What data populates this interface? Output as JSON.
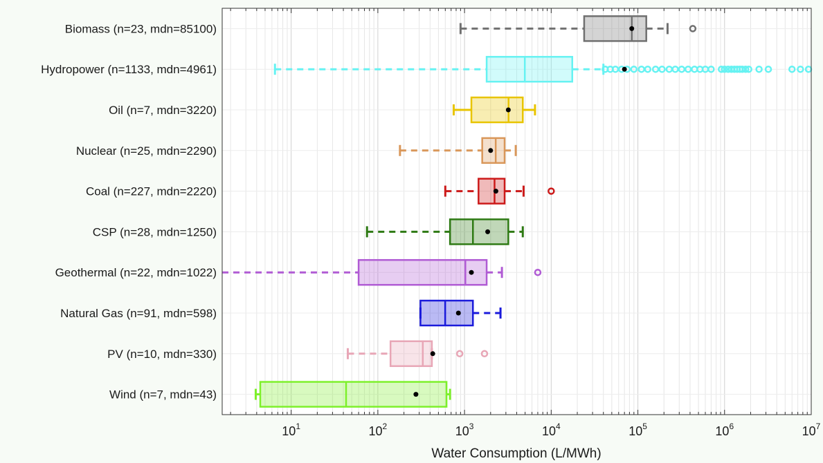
{
  "chart_data": {
    "type": "box",
    "orientation": "horizontal",
    "xlabel": "Water Consumption (L/MWh)",
    "xscale": "log",
    "xlim": [
      1.6,
      10000000
    ],
    "grid": true,
    "xticks": [
      {
        "base": "10",
        "exp": "1"
      },
      {
        "base": "10",
        "exp": "2"
      },
      {
        "base": "10",
        "exp": "3"
      },
      {
        "base": "10",
        "exp": "4"
      },
      {
        "base": "10",
        "exp": "5"
      },
      {
        "base": "10",
        "exp": "6"
      },
      {
        "base": "10",
        "exp": "7"
      }
    ],
    "categories": [
      {
        "label": "Biomass (n=23, mdn=85100)",
        "color": "#707070",
        "dashed": true,
        "whisker_low": 900,
        "q1": 24000,
        "median": 85100,
        "q3": 125000,
        "whisker_high": 220000,
        "mean": 85000,
        "outliers": [
          430000
        ]
      },
      {
        "label": "Hydropower (n=1133, mdn=4961)",
        "color": "#66f2f2",
        "dashed": true,
        "whisker_low": 6.5,
        "q1": 1800,
        "median": 4961,
        "q3": 17500,
        "whisker_high": 40000,
        "mean": 70000,
        "outliers": [
          42000,
          48000,
          55000,
          65000,
          75000,
          90000,
          110000,
          130000,
          160000,
          190000,
          230000,
          270000,
          320000,
          380000,
          450000,
          520000,
          600000,
          700000,
          920000,
          1000000,
          1100000,
          1200000,
          1300000,
          1400000,
          1500000,
          1600000,
          1750000,
          1900000,
          2500000,
          3200000,
          6000000,
          7500000,
          9300000
        ]
      },
      {
        "label": "Oil (n=7, mdn=3220)",
        "color": "#e8c400",
        "dashed": false,
        "whisker_low": 750,
        "q1": 1200,
        "median": 3220,
        "q3": 4700,
        "whisker_high": 6500,
        "mean": 3200,
        "outliers": []
      },
      {
        "label": "Nuclear (n=25, mdn=2290)",
        "color": "#d9975a",
        "dashed": true,
        "whisker_low": 180,
        "q1": 1600,
        "median": 2290,
        "q3": 2900,
        "whisker_high": 3900,
        "mean": 2000,
        "outliers": []
      },
      {
        "label": "Coal (n=227, mdn=2220)",
        "color": "#cc1a1a",
        "dashed": true,
        "whisker_low": 600,
        "q1": 1450,
        "median": 2220,
        "q3": 2900,
        "whisker_high": 4800,
        "mean": 2300,
        "outliers": [
          10000
        ]
      },
      {
        "label": "CSP (n=28, mdn=1250)",
        "color": "#2e7a14",
        "dashed": true,
        "whisker_low": 75,
        "q1": 680,
        "median": 1250,
        "q3": 3200,
        "whisker_high": 4700,
        "mean": 1850,
        "outliers": []
      },
      {
        "label": "Geothermal (n=22, mdn=1022)",
        "color": "#b05bd4",
        "dashed": true,
        "whisker_low": 1.6,
        "q1": 60,
        "median": 1022,
        "q3": 1800,
        "whisker_high": 2700,
        "mean": 1200,
        "outliers": [
          7000
        ]
      },
      {
        "label": "Natural Gas (n=91, mdn=598)",
        "color": "#1a1adb",
        "dashed": true,
        "whisker_low": 310,
        "q1": 310,
        "median": 598,
        "q3": 1250,
        "whisker_high": 2600,
        "mean": 850,
        "outliers": []
      },
      {
        "label": "PV (n=10, mdn=330)",
        "color": "#e8a6b6",
        "dashed": true,
        "whisker_low": 45,
        "q1": 140,
        "median": 330,
        "q3": 420,
        "whisker_high": 420,
        "mean": 430,
        "outliers": [
          880,
          1700
        ]
      },
      {
        "label": "Wind (n=7, mdn=43)",
        "color": "#7df02a",
        "dashed": false,
        "whisker_low": 3.9,
        "q1": 4.4,
        "median": 43,
        "q3": 620,
        "whisker_high": 680,
        "mean": 275,
        "outliers": []
      }
    ]
  }
}
